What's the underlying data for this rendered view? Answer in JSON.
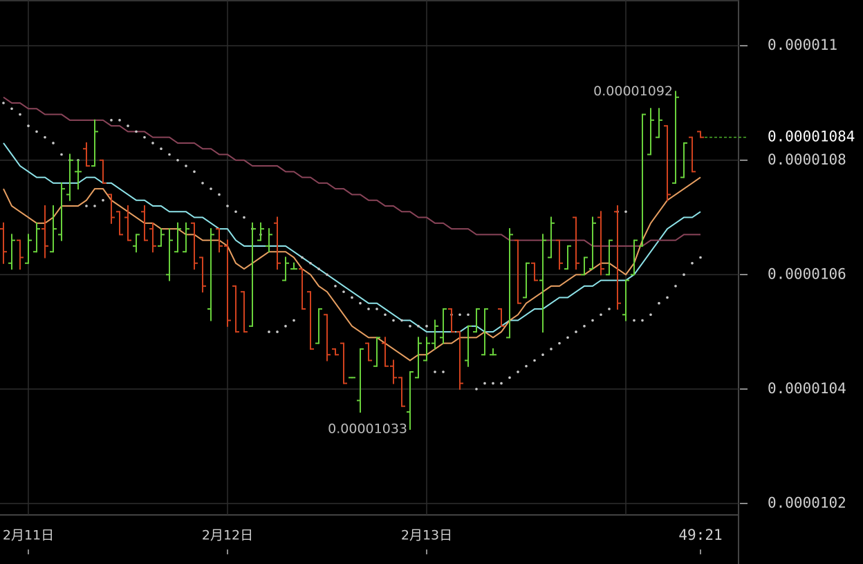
{
  "chart_data": {
    "type": "ohlc",
    "up_color": "#6ad23c",
    "down_color": "#d2421e",
    "ylim": [
      1.018e-05,
      1.108e-05
    ],
    "yticks": [
      1.02e-05,
      1.04e-05,
      1.06e-05,
      1.08e-05,
      1.1e-05
    ],
    "grid": true,
    "categories": [
      null,
      null,
      null,
      "2月11日",
      null,
      null,
      null,
      null,
      null,
      null,
      null,
      null,
      null,
      null,
      null,
      null,
      null,
      null,
      null,
      null,
      null,
      null,
      null,
      null,
      null,
      null,
      null,
      "2月12日",
      null,
      null,
      null,
      null,
      null,
      null,
      null,
      null,
      null,
      null,
      null,
      null,
      null,
      null,
      null,
      null,
      null,
      null,
      null,
      null,
      null,
      null,
      null,
      "2月13日",
      null,
      null,
      null,
      null,
      null,
      null,
      null,
      null,
      null,
      null,
      null,
      null,
      null,
      null,
      null,
      null,
      null,
      null,
      null,
      null,
      null,
      null,
      null,
      null,
      null,
      null,
      null,
      null,
      null,
      null,
      null,
      null,
      null
    ],
    "countdown": "49:21",
    "current_price": 1.084e-05,
    "current_color": "#4caf2a",
    "high_label": 1.092e-05,
    "high_index": 81,
    "low_label": 1.033e-05,
    "low_index": 49,
    "open": [
      1.068e-05,
      1.062e-05,
      1.066e-05,
      1.062e-05,
      1.064e-05,
      1.068e-05,
      1.064e-05,
      1.067e-05,
      1.074e-05,
      1.078e-05,
      1.082e-05,
      1.079e-05,
      1.08e-05,
      1.074e-05,
      1.071e-05,
      1.07e-05,
      1.065e-05,
      1.071e-05,
      1.068e-05,
      1.065e-05,
      1.06e-05,
      1.064e-05,
      1.064e-05,
      1.069e-05,
      1.063e-05,
      1.054e-05,
      1.068e-05,
      1.065e-05,
      1.058e-05,
      1.057e-05,
      1.051e-05,
      1.066e-05,
      1.065e-05,
      1.069e-05,
      1.059e-05,
      1.061e-05,
      1.061e-05,
      1.057e-05,
      1.048e-05,
      1.053e-05,
      1.047e-05,
      1.048e-05,
      1.042e-05,
      1.038e-05,
      1.048e-05,
      1.044e-05,
      1.048e-05,
      1.044e-05,
      1.042e-05,
      1.036e-05,
      1.042e-05,
      1.045e-05,
      1.048e-05,
      1.049e-05,
      1.054e-05,
      1.05e-05,
      1.045e-05,
      1.05e-05,
      1.046e-05,
      1.046e-05,
      1.054e-05,
      1.049e-05,
      1.066e-05,
      1.056e-05,
      1.062e-05,
      1.059e-05,
      1.063e-05,
      1.066e-05,
      1.061e-05,
      1.07e-05,
      1.06e-05,
      1.061e-05,
      1.07e-05,
      1.06e-05,
      1.071e-05,
      1.053e-05,
      1.06e-05,
      1.065e-05,
      1.081e-05,
      1.084e-05,
      1.086e-05,
      1.076e-05,
      1.077e-05,
      1.084e-05,
      1.085e-05
    ],
    "high": [
      1.069e-05,
      1.067e-05,
      1.066e-05,
      1.067e-05,
      1.069e-05,
      1.072e-05,
      1.072e-05,
      1.076e-05,
      1.081e-05,
      1.08e-05,
      1.083e-05,
      1.087e-05,
      1.08e-05,
      1.074e-05,
      1.071e-05,
      1.072e-05,
      1.067e-05,
      1.072e-05,
      1.069e-05,
      1.068e-05,
      1.068e-05,
      1.069e-05,
      1.069e-05,
      1.069e-05,
      1.063e-05,
      1.068e-05,
      1.068e-05,
      1.066e-05,
      1.058e-05,
      1.057e-05,
      1.069e-05,
      1.069e-05,
      1.068e-05,
      1.07e-05,
      1.063e-05,
      1.062e-05,
      1.061e-05,
      1.057e-05,
      1.054e-05,
      1.053e-05,
      1.047e-05,
      1.048e-05,
      1.042e-05,
      1.047e-05,
      1.048e-05,
      1.049e-05,
      1.049e-05,
      1.045e-05,
      1.042e-05,
      1.043e-05,
      1.049e-05,
      1.049e-05,
      1.052e-05,
      1.054e-05,
      1.054e-05,
      1.05e-05,
      1.051e-05,
      1.054e-05,
      1.054e-05,
      1.047e-05,
      1.054e-05,
      1.068e-05,
      1.066e-05,
      1.062e-05,
      1.062e-05,
      1.067e-05,
      1.07e-05,
      1.066e-05,
      1.065e-05,
      1.07e-05,
      1.063e-05,
      1.07e-05,
      1.071e-05,
      1.066e-05,
      1.072e-05,
      1.059e-05,
      1.066e-05,
      1.088e-05,
      1.089e-05,
      1.089e-05,
      1.086e-05,
      1.092e-05,
      1.083e-05,
      1.084e-05,
      1.085e-05
    ],
    "low": [
      1.062e-05,
      1.061e-05,
      1.061e-05,
      1.062e-05,
      1.064e-05,
      1.063e-05,
      1.064e-05,
      1.066e-05,
      1.073e-05,
      1.075e-05,
      1.079e-05,
      1.079e-05,
      1.076e-05,
      1.069e-05,
      1.067e-05,
      1.066e-05,
      1.064e-05,
      1.066e-05,
      1.064e-05,
      1.065e-05,
      1.059e-05,
      1.064e-05,
      1.064e-05,
      1.061e-05,
      1.057e-05,
      1.052e-05,
      1.064e-05,
      1.051e-05,
      1.05e-05,
      1.05e-05,
      1.051e-05,
      1.066e-05,
      1.064e-05,
      1.061e-05,
      1.059e-05,
      1.061e-05,
      1.054e-05,
      1.047e-05,
      1.048e-05,
      1.045e-05,
      1.046e-05,
      1.041e-05,
      1.042e-05,
      1.036e-05,
      1.045e-05,
      1.044e-05,
      1.044e-05,
      1.041e-05,
      1.037e-05,
      1.033e-05,
      1.042e-05,
      1.045e-05,
      1.047e-05,
      1.048e-05,
      1.05e-05,
      1.04e-05,
      1.044e-05,
      1.05e-05,
      1.046e-05,
      1.046e-05,
      1.051e-05,
      1.049e-05,
      1.055e-05,
      1.056e-05,
      1.059e-05,
      1.05e-05,
      1.063e-05,
      1.061e-05,
      1.061e-05,
      1.061e-05,
      1.06e-05,
      1.061e-05,
      1.06e-05,
      1.06e-05,
      1.054e-05,
      1.052e-05,
      1.06e-05,
      1.065e-05,
      1.081e-05,
      1.084e-05,
      1.073e-05,
      1.076e-05,
      1.077e-05,
      1.078e-05,
      1.084e-05
    ],
    "close": [
      1.064e-05,
      1.066e-05,
      1.063e-05,
      1.066e-05,
      1.068e-05,
      1.065e-05,
      1.068e-05,
      1.075e-05,
      1.08e-05,
      1.078e-05,
      1.079e-05,
      1.085e-05,
      1.076e-05,
      1.07e-05,
      1.067e-05,
      1.066e-05,
      1.067e-05,
      1.066e-05,
      1.065e-05,
      1.067e-05,
      1.066e-05,
      1.068e-05,
      1.068e-05,
      1.062e-05,
      1.058e-05,
      1.067e-05,
      1.065e-05,
      1.052e-05,
      1.05e-05,
      1.05e-05,
      1.068e-05,
      1.068e-05,
      1.067e-05,
      1.062e-05,
      1.062e-05,
      1.061e-05,
      1.054e-05,
      1.047e-05,
      1.054e-05,
      1.046e-05,
      1.046e-05,
      1.041e-05,
      1.042e-05,
      1.047e-05,
      1.045e-05,
      1.049e-05,
      1.044e-05,
      1.042e-05,
      1.037e-05,
      1.043e-05,
      1.048e-05,
      1.048e-05,
      1.051e-05,
      1.054e-05,
      1.05e-05,
      1.041e-05,
      1.051e-05,
      1.054e-05,
      1.054e-05,
      1.046e-05,
      1.051e-05,
      1.067e-05,
      1.055e-05,
      1.062e-05,
      1.059e-05,
      1.066e-05,
      1.069e-05,
      1.062e-05,
      1.065e-05,
      1.062e-05,
      1.063e-05,
      1.069e-05,
      1.061e-05,
      1.066e-05,
      1.055e-05,
      1.059e-05,
      1.066e-05,
      1.088e-05,
      1.087e-05,
      1.087e-05,
      1.074e-05,
      1.091e-05,
      1.083e-05,
      1.078e-05,
      1.084e-05
    ],
    "indicators": [
      {
        "color": "#8ee4ea",
        "values": [
          1.083e-05,
          1.081e-05,
          1.079e-05,
          1.078e-05,
          1.077e-05,
          1.077e-05,
          1.076e-05,
          1.076e-05,
          1.076e-05,
          1.076e-05,
          1.077e-05,
          1.077e-05,
          1.076e-05,
          1.076e-05,
          1.075e-05,
          1.074e-05,
          1.073e-05,
          1.073e-05,
          1.072e-05,
          1.072e-05,
          1.071e-05,
          1.071e-05,
          1.071e-05,
          1.07e-05,
          1.07e-05,
          1.069e-05,
          1.068e-05,
          1.068e-05,
          1.066e-05,
          1.065e-05,
          1.065e-05,
          1.065e-05,
          1.065e-05,
          1.065e-05,
          1.065e-05,
          1.064e-05,
          1.063e-05,
          1.062e-05,
          1.061e-05,
          1.06e-05,
          1.059e-05,
          1.058e-05,
          1.057e-05,
          1.056e-05,
          1.055e-05,
          1.055e-05,
          1.054e-05,
          1.053e-05,
          1.052e-05,
          1.052e-05,
          1.051e-05,
          1.05e-05,
          1.05e-05,
          1.05e-05,
          1.05e-05,
          1.05e-05,
          1.051e-05,
          1.051e-05,
          1.05e-05,
          1.05e-05,
          1.051e-05,
          1.052e-05,
          1.052e-05,
          1.053e-05,
          1.054e-05,
          1.054e-05,
          1.055e-05,
          1.056e-05,
          1.056e-05,
          1.057e-05,
          1.058e-05,
          1.058e-05,
          1.059e-05,
          1.059e-05,
          1.059e-05,
          1.059e-05,
          1.06e-05,
          1.062e-05,
          1.064e-05,
          1.066e-05,
          1.068e-05,
          1.069e-05,
          1.07e-05,
          1.07e-05,
          1.071e-05
        ]
      },
      {
        "color": "#e9a062",
        "values": [
          1.075e-05,
          1.072e-05,
          1.071e-05,
          1.07e-05,
          1.069e-05,
          1.069e-05,
          1.07e-05,
          1.072e-05,
          1.072e-05,
          1.072e-05,
          1.073e-05,
          1.075e-05,
          1.075e-05,
          1.073e-05,
          1.072e-05,
          1.071e-05,
          1.07e-05,
          1.069e-05,
          1.069e-05,
          1.068e-05,
          1.068e-05,
          1.068e-05,
          1.067e-05,
          1.067e-05,
          1.066e-05,
          1.066e-05,
          1.066e-05,
          1.065e-05,
          1.062e-05,
          1.061e-05,
          1.062e-05,
          1.063e-05,
          1.064e-05,
          1.064e-05,
          1.064e-05,
          1.063e-05,
          1.061e-05,
          1.06e-05,
          1.058e-05,
          1.057e-05,
          1.055e-05,
          1.053e-05,
          1.051e-05,
          1.05e-05,
          1.049e-05,
          1.049e-05,
          1.048e-05,
          1.047e-05,
          1.046e-05,
          1.045e-05,
          1.046e-05,
          1.046e-05,
          1.047e-05,
          1.048e-05,
          1.048e-05,
          1.049e-05,
          1.049e-05,
          1.049e-05,
          1.05e-05,
          1.049e-05,
          1.05e-05,
          1.052e-05,
          1.053e-05,
          1.055e-05,
          1.056e-05,
          1.057e-05,
          1.058e-05,
          1.058e-05,
          1.059e-05,
          1.06e-05,
          1.06e-05,
          1.061e-05,
          1.062e-05,
          1.062e-05,
          1.061e-05,
          1.06e-05,
          1.062e-05,
          1.066e-05,
          1.069e-05,
          1.071e-05,
          1.073e-05,
          1.074e-05,
          1.075e-05,
          1.076e-05,
          1.077e-05
        ]
      },
      {
        "color": "#8a4459",
        "values": [
          1.091e-05,
          1.09e-05,
          1.09e-05,
          1.089e-05,
          1.089e-05,
          1.088e-05,
          1.088e-05,
          1.088e-05,
          1.087e-05,
          1.087e-05,
          1.087e-05,
          1.087e-05,
          1.087e-05,
          1.086e-05,
          1.086e-05,
          1.085e-05,
          1.085e-05,
          1.085e-05,
          1.084e-05,
          1.084e-05,
          1.084e-05,
          1.083e-05,
          1.083e-05,
          1.083e-05,
          1.082e-05,
          1.082e-05,
          1.081e-05,
          1.081e-05,
          1.08e-05,
          1.08e-05,
          1.079e-05,
          1.079e-05,
          1.079e-05,
          1.079e-05,
          1.078e-05,
          1.078e-05,
          1.077e-05,
          1.077e-05,
          1.076e-05,
          1.076e-05,
          1.075e-05,
          1.075e-05,
          1.074e-05,
          1.074e-05,
          1.073e-05,
          1.073e-05,
          1.072e-05,
          1.072e-05,
          1.071e-05,
          1.071e-05,
          1.07e-05,
          1.07e-05,
          1.069e-05,
          1.069e-05,
          1.068e-05,
          1.068e-05,
          1.068e-05,
          1.067e-05,
          1.067e-05,
          1.067e-05,
          1.067e-05,
          1.066e-05,
          1.066e-05,
          1.066e-05,
          1.066e-05,
          1.066e-05,
          1.066e-05,
          1.066e-05,
          1.066e-05,
          1.066e-05,
          1.066e-05,
          1.065e-05,
          1.065e-05,
          1.065e-05,
          1.065e-05,
          1.065e-05,
          1.065e-05,
          1.065e-05,
          1.066e-05,
          1.066e-05,
          1.066e-05,
          1.066e-05,
          1.067e-05,
          1.067e-05,
          1.067e-05
        ]
      }
    ],
    "sar": {
      "color": "#c8c8c8",
      "values": [
        1.09e-05,
        1.089e-05,
        1.088e-05,
        1.086e-05,
        1.085e-05,
        1.084e-05,
        1.083e-05,
        1.081e-05,
        1.08e-05,
        1.08e-05,
        1.072e-05,
        1.072e-05,
        1.073e-05,
        1.087e-05,
        1.087e-05,
        1.086e-05,
        1.085e-05,
        1.084e-05,
        1.083e-05,
        1.082e-05,
        1.081e-05,
        1.08e-05,
        1.079e-05,
        1.078e-05,
        1.076e-05,
        1.075e-05,
        1.074e-05,
        1.072e-05,
        1.071e-05,
        1.07e-05,
        1.068e-05,
        1.067e-05,
        1.05e-05,
        1.05e-05,
        1.051e-05,
        1.052e-05,
        1.063e-05,
        1.062e-05,
        1.061e-05,
        1.06e-05,
        1.058e-05,
        1.057e-05,
        1.056e-05,
        1.055e-05,
        1.054e-05,
        1.054e-05,
        1.053e-05,
        1.052e-05,
        1.052e-05,
        1.051e-05,
        1.051e-05,
        1.051e-05,
        1.043e-05,
        1.043e-05,
        1.053e-05,
        1.053e-05,
        1.053e-05,
        1.04e-05,
        1.041e-05,
        1.041e-05,
        1.041e-05,
        1.042e-05,
        1.043e-05,
        1.044e-05,
        1.045e-05,
        1.046e-05,
        1.047e-05,
        1.048e-05,
        1.049e-05,
        1.05e-05,
        1.051e-05,
        1.052e-05,
        1.053e-05,
        1.054e-05,
        1.071e-05,
        1.071e-05,
        1.052e-05,
        1.052e-05,
        1.053e-05,
        1.055e-05,
        1.056e-05,
        1.058e-05,
        1.06e-05,
        1.062e-05,
        1.063e-05
      ]
    }
  }
}
